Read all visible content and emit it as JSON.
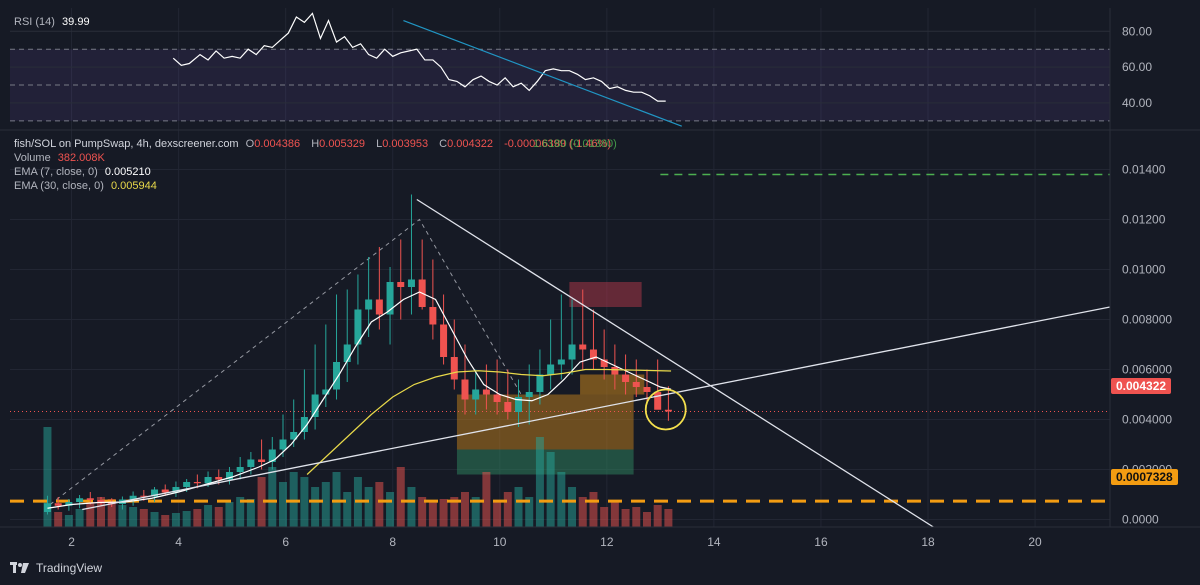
{
  "rsi_legend": {
    "name": "RSI (14)",
    "value": "39.99"
  },
  "legend": {
    "symbol": "fish/SOL on PumpSwap, 4h, dexscreener.com",
    "o_label": "O",
    "o": "0.004386",
    "h_label": "H",
    "h": "0.005329",
    "l_label": "L",
    "l": "0.003953",
    "c_label": "C",
    "c": "0.004322",
    "change": "-0.00006399 (-1.46%)",
    "overlap_text": "1.6180 (0.01380)",
    "volume_label": "Volume",
    "volume": "382.008K",
    "ema7_label": "EMA (7, close, 0)",
    "ema7": "0.005210",
    "ema30_label": "EMA (30, close, 0)",
    "ema30": "0.005944"
  },
  "badges": {
    "last_price": "0.004322",
    "support": "0.0007328"
  },
  "branding": {
    "name": "TradingView"
  },
  "colors": {
    "background": "#161a25",
    "up": "#26a69a",
    "down": "#ef5350",
    "ema7": "#ffffff",
    "ema30": "#e8d94a",
    "support": "#f39c12",
    "target": "#4caf50",
    "rsi": "#ffffff",
    "rsi_band": "#7e57c2",
    "rsi_trend": "#2196c4"
  },
  "chart_data": [
    {
      "type": "line",
      "title": "RSI (14)",
      "y_ticks": [
        "80.00",
        "60.00",
        "40.00"
      ],
      "levels": [
        70,
        50,
        30
      ],
      "ylim": [
        26,
        93
      ],
      "series": [
        {
          "name": "RSI (14)",
          "x": [
            3.9,
            4.05,
            4.2,
            4.4,
            4.55,
            4.7,
            4.85,
            5.0,
            5.15,
            5.3,
            5.45,
            5.6,
            5.75,
            5.9,
            6.05,
            6.2,
            6.35,
            6.5,
            6.65,
            6.8,
            6.95,
            7.1,
            7.25,
            7.4,
            7.55,
            7.7,
            7.85,
            8.0,
            8.15,
            8.3,
            8.45,
            8.6,
            8.75,
            8.9,
            9.05,
            9.2,
            9.35,
            9.5,
            9.65,
            9.8,
            9.95,
            10.1,
            10.25,
            10.4,
            10.55,
            10.7,
            10.85,
            11.0,
            11.15,
            11.3,
            11.45,
            11.6,
            11.75,
            11.9,
            12.05,
            12.2,
            12.35,
            12.5,
            12.65,
            12.8,
            12.95,
            13.1
          ],
          "values": [
            65,
            61,
            62,
            67,
            64,
            69,
            65,
            66,
            65,
            70,
            67,
            72,
            71,
            75,
            79,
            88,
            85,
            90,
            76,
            86,
            74,
            77,
            71,
            73,
            67,
            65,
            70,
            66,
            68,
            69,
            70,
            64,
            64,
            60,
            53,
            52,
            49,
            53,
            55,
            52,
            50,
            54,
            49,
            51,
            47,
            52,
            58,
            59,
            58,
            58,
            56,
            53,
            54,
            52,
            48,
            49,
            47,
            46,
            46,
            44,
            41,
            41
          ]
        },
        {
          "name": "RSI trendline",
          "x": [
            8.2,
            13.4
          ],
          "values": [
            86,
            27
          ]
        }
      ]
    },
    {
      "type": "candlestick",
      "title": "fish/SOL on PumpSwap, 4h, dexscreener.com",
      "x_ticks": [
        2,
        4,
        6,
        8,
        10,
        12,
        14,
        16,
        18,
        20
      ],
      "y_ticks": [
        "0.01400",
        "0.01200",
        "0.01000",
        "0.008000",
        "0.006000",
        "0.004000",
        "0.002000",
        "0.0000"
      ],
      "ylim": [
        -0.0003,
        0.0155
      ],
      "xlim": [
        0.85,
        21.4
      ],
      "x": [
        1.55,
        1.75,
        1.95,
        2.15,
        2.35,
        2.55,
        2.75,
        2.95,
        3.15,
        3.35,
        3.55,
        3.75,
        3.95,
        4.15,
        4.35,
        4.55,
        4.75,
        4.95,
        5.15,
        5.35,
        5.55,
        5.75,
        5.95,
        6.15,
        6.35,
        6.55,
        6.75,
        6.95,
        7.15,
        7.35,
        7.55,
        7.75,
        7.95,
        8.15,
        8.35,
        8.55,
        8.75,
        8.95,
        9.15,
        9.35,
        9.55,
        9.75,
        9.95,
        10.15,
        10.35,
        10.55,
        10.75,
        10.95,
        11.15,
        11.35,
        11.55,
        11.75,
        11.95,
        12.15,
        12.35,
        12.55,
        12.75,
        12.95,
        13.15
      ],
      "open": [
        0.0003,
        0.00065,
        0.00055,
        0.0007,
        0.00085,
        0.00078,
        0.0007,
        0.00062,
        0.0008,
        0.00095,
        0.00092,
        0.0012,
        0.00108,
        0.0013,
        0.0015,
        0.00145,
        0.0017,
        0.0016,
        0.0019,
        0.0021,
        0.0024,
        0.0023,
        0.0028,
        0.0032,
        0.0035,
        0.0041,
        0.005,
        0.0052,
        0.0063,
        0.007,
        0.0084,
        0.0088,
        0.0082,
        0.0095,
        0.0093,
        0.0096,
        0.0085,
        0.0078,
        0.0065,
        0.0056,
        0.0048,
        0.0052,
        0.005,
        0.0047,
        0.0043,
        0.0049,
        0.0051,
        0.0058,
        0.0062,
        0.0064,
        0.007,
        0.0068,
        0.0064,
        0.0061,
        0.0058,
        0.0055,
        0.0053,
        0.0051,
        0.00439
      ],
      "high": [
        0.00095,
        0.0009,
        0.00082,
        0.00098,
        0.0011,
        0.0009,
        0.00085,
        0.00092,
        0.00112,
        0.00118,
        0.0013,
        0.0014,
        0.00152,
        0.00162,
        0.0018,
        0.00192,
        0.002,
        0.0021,
        0.0025,
        0.0027,
        0.0032,
        0.0033,
        0.0042,
        0.0048,
        0.006,
        0.007,
        0.0078,
        0.009,
        0.0092,
        0.0098,
        0.0105,
        0.0109,
        0.0101,
        0.0112,
        0.013,
        0.0112,
        0.0104,
        0.009,
        0.008,
        0.007,
        0.006,
        0.0062,
        0.0064,
        0.006,
        0.0056,
        0.0062,
        0.0068,
        0.008,
        0.009,
        0.0088,
        0.0092,
        0.0084,
        0.0076,
        0.007,
        0.0066,
        0.0064,
        0.006,
        0.0064,
        0.00533
      ],
      "low": [
        0.0002,
        0.0004,
        0.00035,
        0.00045,
        0.0006,
        0.00055,
        0.0005,
        0.0004,
        0.00055,
        0.00075,
        0.0007,
        0.00095,
        0.0009,
        0.0011,
        0.00125,
        0.0013,
        0.0014,
        0.0014,
        0.0016,
        0.0018,
        0.002,
        0.002,
        0.0025,
        0.0029,
        0.0032,
        0.0036,
        0.0045,
        0.0048,
        0.0055,
        0.0062,
        0.0073,
        0.0076,
        0.007,
        0.008,
        0.0082,
        0.0084,
        0.0072,
        0.0062,
        0.0052,
        0.0042,
        0.0042,
        0.0044,
        0.0042,
        0.004,
        0.0037,
        0.0038,
        0.0046,
        0.0052,
        0.0056,
        0.0058,
        0.006,
        0.006,
        0.0056,
        0.0052,
        0.005,
        0.0049,
        0.0047,
        0.0045,
        0.00395
      ],
      "close": [
        0.00065,
        0.00055,
        0.0007,
        0.00085,
        0.00078,
        0.0007,
        0.00062,
        0.0008,
        0.00095,
        0.00092,
        0.0012,
        0.00108,
        0.0013,
        0.0015,
        0.00145,
        0.0017,
        0.0016,
        0.0019,
        0.0021,
        0.0024,
        0.0023,
        0.0028,
        0.0032,
        0.0035,
        0.0041,
        0.005,
        0.0052,
        0.0063,
        0.007,
        0.0084,
        0.0088,
        0.0082,
        0.0095,
        0.0093,
        0.0096,
        0.0085,
        0.0078,
        0.0065,
        0.0056,
        0.0048,
        0.0052,
        0.005,
        0.0047,
        0.0043,
        0.0049,
        0.0051,
        0.0058,
        0.0062,
        0.0064,
        0.007,
        0.0068,
        0.0064,
        0.0061,
        0.0058,
        0.0055,
        0.0053,
        0.0051,
        0.00439,
        0.00432
      ],
      "volume": [
        1.0,
        0.15,
        0.12,
        0.18,
        0.25,
        0.3,
        0.28,
        0.22,
        0.2,
        0.18,
        0.15,
        0.12,
        0.14,
        0.16,
        0.18,
        0.22,
        0.2,
        0.25,
        0.3,
        0.28,
        0.5,
        0.6,
        0.45,
        0.55,
        0.5,
        0.4,
        0.45,
        0.55,
        0.35,
        0.5,
        0.4,
        0.45,
        0.35,
        0.6,
        0.4,
        0.3,
        0.25,
        0.28,
        0.3,
        0.35,
        0.3,
        0.55,
        0.25,
        0.35,
        0.4,
        0.3,
        0.9,
        0.75,
        0.55,
        0.4,
        0.3,
        0.35,
        0.2,
        0.25,
        0.18,
        0.2,
        0.15,
        0.22,
        0.18
      ],
      "series": [
        {
          "name": "EMA (7, close, 0)",
          "x": [
            1.55,
            2.0,
            2.5,
            3.0,
            3.5,
            4.0,
            4.5,
            5.0,
            5.5,
            5.8,
            6.1,
            6.4,
            6.7,
            7.0,
            7.3,
            7.6,
            7.9,
            8.2,
            8.5,
            8.8,
            9.1,
            9.4,
            9.7,
            10.0,
            10.3,
            10.6,
            10.9,
            11.2,
            11.5,
            11.8,
            12.1,
            12.4,
            12.7,
            13.0,
            13.2
          ],
          "values": [
            0.00045,
            0.0006,
            0.00068,
            0.0007,
            0.00085,
            0.0011,
            0.0014,
            0.0017,
            0.0021,
            0.0024,
            0.003,
            0.0038,
            0.0048,
            0.0058,
            0.0069,
            0.0079,
            0.0083,
            0.0088,
            0.0091,
            0.0088,
            0.0076,
            0.0064,
            0.0054,
            0.005,
            0.0048,
            0.00475,
            0.005,
            0.0056,
            0.0063,
            0.0065,
            0.0062,
            0.0059,
            0.0056,
            0.0053,
            0.00521
          ]
        },
        {
          "name": "EMA (30, close, 0)",
          "x": [
            6.4,
            6.8,
            7.2,
            7.6,
            8.0,
            8.4,
            8.8,
            9.2,
            9.6,
            10.0,
            10.4,
            10.8,
            11.2,
            11.6,
            12.0,
            12.4,
            12.8,
            13.2
          ],
          "values": [
            0.0018,
            0.0026,
            0.0034,
            0.0042,
            0.0049,
            0.0054,
            0.0057,
            0.0059,
            0.00595,
            0.0059,
            0.0058,
            0.00575,
            0.00585,
            0.006,
            0.006,
            0.00598,
            0.00596,
            0.00594
          ]
        }
      ],
      "levels": [
        0.0007328,
        0.0138,
        0.004322
      ]
    }
  ]
}
